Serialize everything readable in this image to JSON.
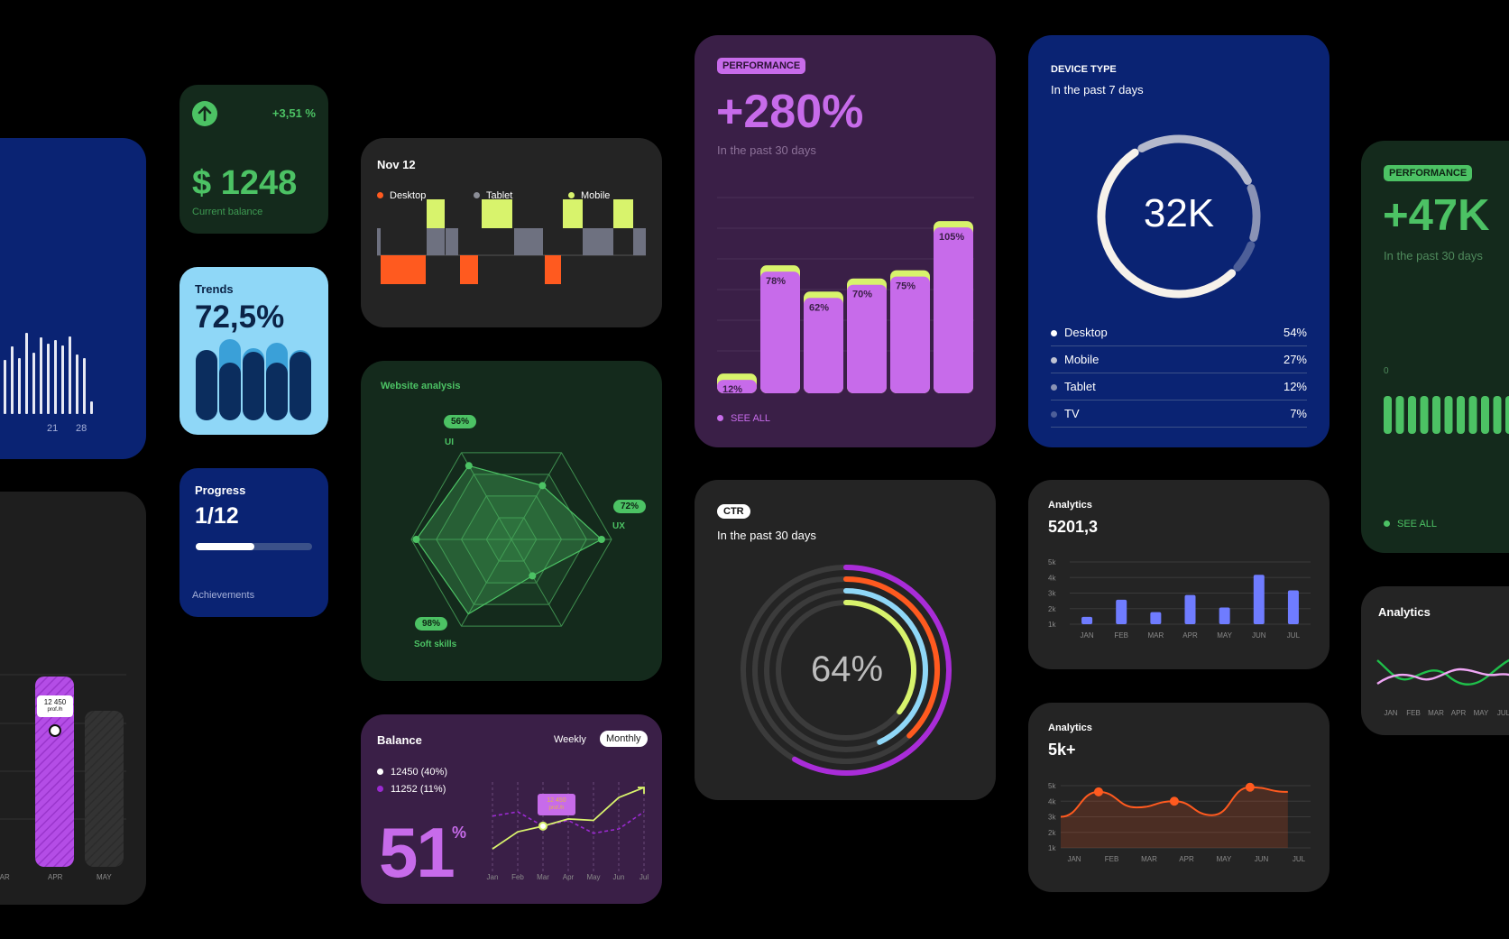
{
  "colors": {
    "bg": "#000000",
    "green": "#4cc264",
    "purple": "#c76bea",
    "lime": "#d8f36c",
    "orange": "#ff5a1f",
    "navy": "#0a2373"
  },
  "left_blue": {
    "xticks": [
      "21",
      "28"
    ]
  },
  "left_dark": {
    "tooltip_value": "12 450",
    "tooltip_unit": "prof./h",
    "xticks": [
      "MAR",
      "APR",
      "MAY"
    ]
  },
  "balance_small": {
    "delta": "+3,51 %",
    "value": "$ 1248",
    "label": "Current balance",
    "icon": "arrow-up-icon"
  },
  "trends": {
    "title": "Trends",
    "value": "72,5%"
  },
  "progress": {
    "title": "Progress",
    "value": "1/12",
    "fraction": 0.5,
    "footer": "Achievements"
  },
  "nov": {
    "title": "Nov 12",
    "legend": [
      {
        "label": "Desktop",
        "color": "#ff5a1f"
      },
      {
        "label": "Tablet",
        "color": "#8b8d96"
      },
      {
        "label": "Mobile",
        "color": "#d8f36c"
      }
    ]
  },
  "radar": {
    "title": "Website analysis",
    "labels": [
      {
        "pct": "56%",
        "name": "UI"
      },
      {
        "pct": "72%",
        "name": "UX"
      },
      {
        "pct": "98%",
        "name": "Soft skills"
      }
    ]
  },
  "balance_big": {
    "title": "Balance",
    "toggle": [
      "Weekly",
      "Monthly"
    ],
    "legend": [
      {
        "label": "12450 (40%)"
      },
      {
        "label": "11252 (11%)"
      }
    ],
    "big": "51",
    "sup": "%",
    "tooltip_value": "12 450",
    "tooltip_unit": "prof./h",
    "xticks": [
      "Jan",
      "Feb",
      "Mar",
      "Apr",
      "May",
      "Jun",
      "Jul"
    ]
  },
  "performance": {
    "badge": "PERFORMANCE",
    "value": "+280%",
    "subtitle": "In the past 30 days",
    "see_all": "SEE ALL"
  },
  "ctr": {
    "badge": "CTR",
    "subtitle": "In the past 30 days",
    "value": "64%"
  },
  "device": {
    "title": "DEVICE TYPE",
    "subtitle": "In the past 7 days",
    "value": "32K",
    "rows": [
      {
        "label": "Desktop",
        "pct": "54%"
      },
      {
        "label": "Mobile",
        "pct": "27%"
      },
      {
        "label": "Tablet",
        "pct": "12%"
      },
      {
        "label": "TV",
        "pct": "7%"
      }
    ]
  },
  "analytics1": {
    "title": "Analytics",
    "value": "5201,3"
  },
  "analytics2": {
    "title": "Analytics",
    "value": "5k+"
  },
  "right_perf": {
    "badge": "PERFORMANCE",
    "value": "+47K",
    "subtitle": "In the past 30 days",
    "axis_zero": "0",
    "see_all": "SEE ALL"
  },
  "right_analytics": {
    "title": "Analytics",
    "xticks": [
      "JAN",
      "FEB",
      "MAR",
      "APR",
      "MAY",
      "JUL"
    ]
  },
  "chart_data": [
    {
      "type": "bar",
      "categories": [
        "",
        "",
        "",
        "",
        "",
        ""
      ],
      "series": [
        {
          "values": [
            12,
            78,
            62,
            70,
            75,
            105
          ]
        }
      ],
      "data_labels": [
        "12%",
        "78%",
        "62%",
        "70%",
        "75%",
        "105%"
      ],
      "ylim": [
        0,
        110
      ]
    },
    {
      "type": "bar",
      "categories": [
        "JAN",
        "FEB",
        "MAR",
        "APR",
        "MAY",
        "JUN",
        "JUL"
      ],
      "series": [
        {
          "values": [
            1.3,
            2.4,
            1.6,
            2.7,
            1.9,
            4.0,
            3.0
          ]
        }
      ],
      "yticks": [
        "5k",
        "4k",
        "3k",
        "2k",
        "1k"
      ],
      "ylim": [
        0.5,
        5
      ]
    },
    {
      "type": "area",
      "categories": [
        "JAN",
        "FEB",
        "MAR",
        "APR",
        "MAY",
        "JUN",
        "JUL"
      ],
      "series": [
        {
          "values": [
            3.0,
            4.6,
            3.6,
            4.0,
            3.1,
            4.9,
            4.6
          ]
        }
      ],
      "yticks": [
        "5k",
        "4k",
        "3k",
        "2k",
        "1k"
      ],
      "ylim": [
        0.5,
        5
      ]
    },
    {
      "type": "line",
      "categories": [
        "Jan",
        "Feb",
        "Mar",
        "Apr",
        "May",
        "Jun",
        "Jul"
      ],
      "series": [
        {
          "values": [
            1.0,
            2.2,
            2.6,
            3.1,
            3.0,
            4.6,
            5.3
          ]
        },
        {
          "values": [
            3.3,
            3.6,
            2.6,
            3.0,
            2.1,
            2.4,
            3.6
          ]
        }
      ]
    },
    {
      "type": "pie",
      "title": "",
      "categories": [
        "Desktop",
        "Mobile",
        "Tablet",
        "TV"
      ],
      "values": [
        54,
        27,
        12,
        7
      ]
    }
  ]
}
